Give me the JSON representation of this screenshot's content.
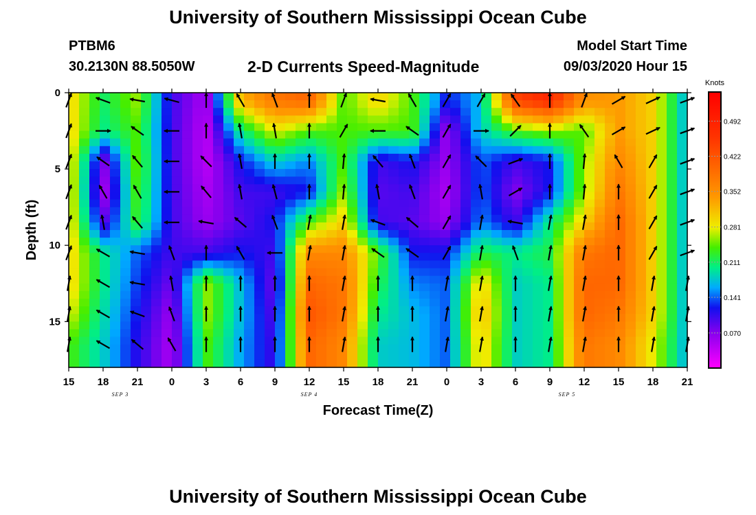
{
  "header": {
    "title": "University of Southern Mississippi Ocean Cube",
    "station": "PTBM6",
    "coordinates": "30.2130N 88.5050W",
    "plot_title": "2-D Currents Speed-Magnitude",
    "model_start_label": "Model Start Time",
    "model_start_value": "09/03/2020 Hour 15"
  },
  "footer": {
    "title": "University of Southern Mississippi Ocean Cube"
  },
  "chart_data": {
    "type": "heatmap",
    "title": "2-D Currents Speed-Magnitude",
    "xlabel": "Forecast Time(Z)",
    "ylabel": "Depth (ft)",
    "x_hours_from_start": [
      0,
      3,
      6,
      9,
      12,
      15,
      18,
      21,
      24,
      27,
      30,
      33,
      36,
      39,
      42,
      45,
      48,
      51,
      54
    ],
    "x_tick_labels": [
      "15",
      "18",
      "21",
      "0",
      "3",
      "6",
      "9",
      "12",
      "15",
      "18",
      "21",
      "0",
      "3",
      "6",
      "9",
      "12",
      "15",
      "18",
      "21"
    ],
    "date_labels": [
      {
        "label": "SEP 3",
        "hour": 4.5
      },
      {
        "label": "SEP 4",
        "hour": 21
      },
      {
        "label": "SEP 5",
        "hour": 43.5
      }
    ],
    "y_ticks": [
      0,
      5,
      10,
      15
    ],
    "ylim": [
      0,
      18
    ],
    "colorbar": {
      "unit": "Knots",
      "ticks": [
        0.07,
        0.141,
        0.211,
        0.281,
        0.352,
        0.422,
        0.492
      ],
      "tick_labels": [
        "0.070",
        "0.141",
        "0.211",
        "0.281",
        "0.352",
        "0.422",
        "0.492"
      ],
      "range": [
        0.0,
        0.55
      ],
      "stops": [
        {
          "v": 0.0,
          "c": "#ff00ff"
        },
        {
          "v": 0.07,
          "c": "#8800ee"
        },
        {
          "v": 0.12,
          "c": "#1010ee"
        },
        {
          "v": 0.16,
          "c": "#00aaff"
        },
        {
          "v": 0.2,
          "c": "#00ee88"
        },
        {
          "v": 0.24,
          "c": "#44ee00"
        },
        {
          "v": 0.28,
          "c": "#eeee00"
        },
        {
          "v": 0.34,
          "c": "#ff9900"
        },
        {
          "v": 0.4,
          "c": "#ff6600"
        },
        {
          "v": 0.46,
          "c": "#ff3300"
        },
        {
          "v": 0.55,
          "c": "#ff0000"
        }
      ]
    },
    "depths": [
      0.5,
      2.5,
      4.5,
      6.5,
      8.5,
      10.5,
      12.5,
      14.5,
      16.5
    ],
    "hours": [
      0,
      3,
      6,
      9,
      12,
      15,
      18,
      21,
      24,
      27,
      30,
      33,
      36,
      39,
      42,
      45,
      48,
      51,
      54
    ],
    "speed_grid": [
      [
        0.3,
        0.21,
        0.26,
        0.1,
        0.05,
        0.32,
        0.38,
        0.4,
        0.24,
        0.3,
        0.24,
        0.12,
        0.17,
        0.44,
        0.48,
        0.35,
        0.34,
        0.3,
        0.16
      ],
      [
        0.3,
        0.2,
        0.24,
        0.1,
        0.04,
        0.2,
        0.28,
        0.24,
        0.24,
        0.24,
        0.24,
        0.06,
        0.18,
        0.24,
        0.26,
        0.24,
        0.34,
        0.3,
        0.16
      ],
      [
        0.3,
        0.07,
        0.25,
        0.1,
        0.04,
        0.12,
        0.18,
        0.15,
        0.24,
        0.1,
        0.12,
        0.06,
        0.14,
        0.1,
        0.12,
        0.26,
        0.36,
        0.3,
        0.16
      ],
      [
        0.3,
        0.05,
        0.24,
        0.1,
        0.05,
        0.1,
        0.1,
        0.12,
        0.26,
        0.09,
        0.1,
        0.05,
        0.14,
        0.07,
        0.12,
        0.26,
        0.38,
        0.3,
        0.16
      ],
      [
        0.3,
        0.09,
        0.23,
        0.1,
        0.06,
        0.09,
        0.12,
        0.24,
        0.3,
        0.1,
        0.09,
        0.06,
        0.15,
        0.1,
        0.2,
        0.3,
        0.4,
        0.3,
        0.16
      ],
      [
        0.3,
        0.2,
        0.14,
        0.1,
        0.1,
        0.12,
        0.1,
        0.36,
        0.36,
        0.24,
        0.12,
        0.12,
        0.22,
        0.2,
        0.22,
        0.38,
        0.4,
        0.3,
        0.16
      ],
      [
        0.3,
        0.2,
        0.13,
        0.08,
        0.26,
        0.17,
        0.08,
        0.4,
        0.38,
        0.22,
        0.15,
        0.14,
        0.3,
        0.18,
        0.2,
        0.4,
        0.4,
        0.3,
        0.16
      ],
      [
        0.28,
        0.19,
        0.12,
        0.06,
        0.26,
        0.17,
        0.09,
        0.42,
        0.38,
        0.2,
        0.17,
        0.14,
        0.32,
        0.18,
        0.2,
        0.4,
        0.38,
        0.3,
        0.16
      ],
      [
        0.24,
        0.18,
        0.11,
        0.05,
        0.24,
        0.16,
        0.1,
        0.4,
        0.36,
        0.18,
        0.17,
        0.14,
        0.3,
        0.18,
        0.2,
        0.38,
        0.36,
        0.28,
        0.16
      ]
    ],
    "arrow_angles_deg": [
      [
        -70,
        200,
        190,
        195,
        -90,
        -120,
        -110,
        -90,
        -70,
        190,
        -120,
        -60,
        -60,
        -125,
        -90,
        -70,
        -30,
        -25,
        -20
      ],
      [
        -70,
        0,
        -145,
        180,
        -90,
        -100,
        -100,
        -90,
        -60,
        180,
        -145,
        -60,
        0,
        -45,
        -90,
        -125,
        -30,
        -25,
        -20
      ],
      [
        -70,
        -145,
        -130,
        180,
        -135,
        -100,
        -90,
        -90,
        -85,
        -130,
        -110,
        -60,
        -135,
        -20,
        -90,
        -85,
        -120,
        -60,
        -20
      ],
      [
        -70,
        -120,
        -120,
        180,
        -130,
        -100,
        -105,
        -90,
        -85,
        -100,
        -110,
        -60,
        -100,
        -30,
        -90,
        -85,
        -90,
        -60,
        -20
      ],
      [
        -70,
        -100,
        -130,
        180,
        -170,
        -140,
        -110,
        -80,
        -80,
        -160,
        -140,
        -60,
        -80,
        -170,
        -80,
        -80,
        -90,
        -60,
        -20
      ],
      [
        -70,
        -150,
        -170,
        -110,
        -90,
        -120,
        -180,
        -80,
        -80,
        -145,
        -145,
        -60,
        -80,
        -110,
        -80,
        -80,
        -90,
        -60,
        -20
      ],
      [
        -80,
        -150,
        -170,
        -100,
        -90,
        -90,
        -90,
        -90,
        -80,
        -90,
        -90,
        -80,
        -80,
        -90,
        -80,
        -80,
        -90,
        -80,
        -80
      ],
      [
        -80,
        -150,
        -160,
        -110,
        -90,
        -90,
        -90,
        -90,
        -80,
        -90,
        -90,
        -80,
        -80,
        -90,
        -80,
        -80,
        -90,
        -80,
        -80
      ],
      [
        -80,
        -150,
        -140,
        -120,
        -90,
        -90,
        -90,
        -90,
        -80,
        -90,
        -90,
        -80,
        -80,
        -90,
        -80,
        -80,
        -90,
        -80,
        -80
      ]
    ]
  }
}
